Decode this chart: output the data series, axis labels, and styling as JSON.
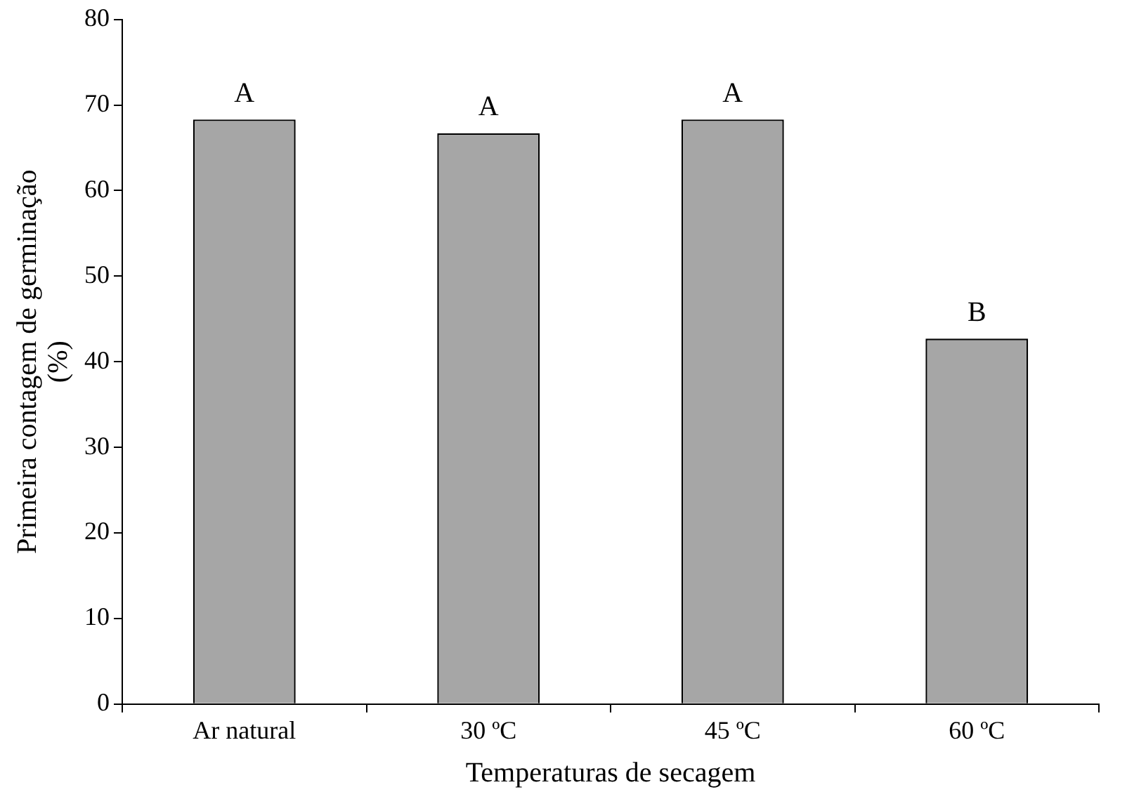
{
  "chart_data": {
    "type": "bar",
    "xlabel": "Temperaturas de secagem",
    "ylabel": "Primeira contagem de germinação\n(%)",
    "categories": [
      "Ar natural",
      "30 ºC",
      "45 ºC",
      "60 ºC"
    ],
    "values": [
      68.3,
      66.7,
      68.3,
      42.7
    ],
    "color": "#a6a6a6",
    "ylim": [
      0,
      80
    ],
    "yticks": [
      0,
      10,
      20,
      30,
      40,
      50,
      60,
      70,
      80
    ],
    "grid": false,
    "legend": false,
    "annotations": [
      {
        "text": "A",
        "x": "Ar natural",
        "y": 68.3
      },
      {
        "text": "A",
        "x": "30 ºC",
        "y": 66.7
      },
      {
        "text": "A",
        "x": "45 ºC",
        "y": 68.3
      },
      {
        "text": "B",
        "x": "60 ºC",
        "y": 42.7
      }
    ]
  }
}
